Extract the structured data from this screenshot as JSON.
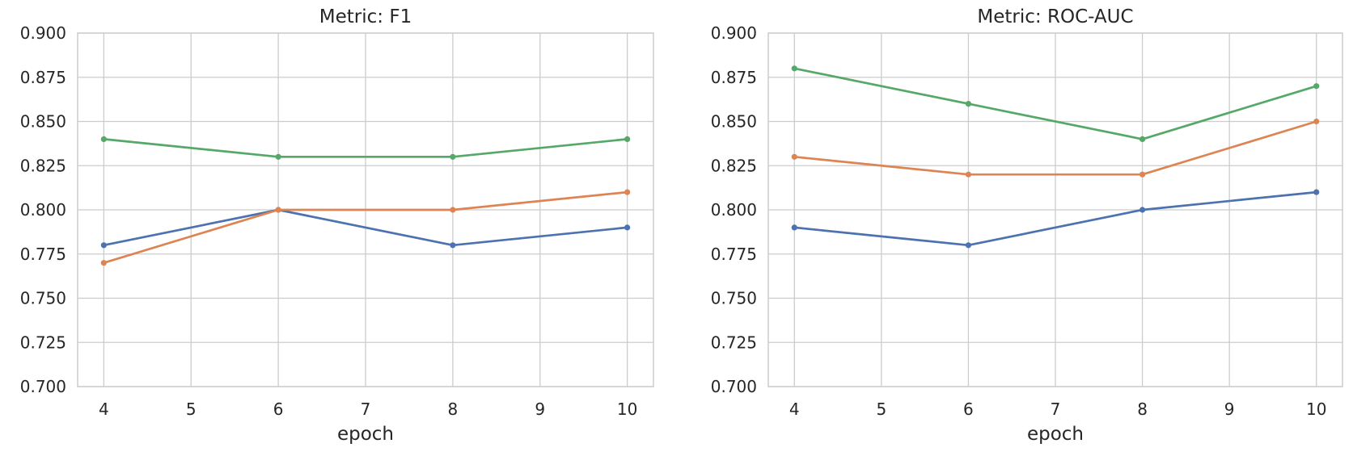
{
  "figure": {
    "background_color": "#ffffff",
    "text_color": "#262626",
    "grid_color": "#cccccc"
  },
  "chart_data": [
    {
      "type": "line",
      "title": "Metric: F1",
      "xlabel": "epoch",
      "ylabel": "",
      "x": [
        4,
        6,
        8,
        10
      ],
      "xticks": [
        4,
        5,
        6,
        7,
        8,
        9,
        10
      ],
      "yticks": [
        "0.700",
        "0.725",
        "0.750",
        "0.775",
        "0.800",
        "0.825",
        "0.850",
        "0.875",
        "0.900"
      ],
      "xlim": [
        3.7,
        10.3
      ],
      "ylim": [
        0.7,
        0.9
      ],
      "grid": true,
      "legend": "none",
      "marker": "circle",
      "series": [
        {
          "name": "blue-series",
          "color": "#4C72B0",
          "values": [
            0.78,
            0.8,
            0.78,
            0.79
          ]
        },
        {
          "name": "orange-series",
          "color": "#DD8452",
          "values": [
            0.77,
            0.8,
            0.8,
            0.81
          ]
        },
        {
          "name": "green-series",
          "color": "#55A868",
          "values": [
            0.84,
            0.83,
            0.83,
            0.84
          ]
        }
      ]
    },
    {
      "type": "line",
      "title": "Metric: ROC-AUC",
      "xlabel": "epoch",
      "ylabel": "",
      "x": [
        4,
        6,
        8,
        10
      ],
      "xticks": [
        4,
        5,
        6,
        7,
        8,
        9,
        10
      ],
      "yticks": [
        "0.700",
        "0.725",
        "0.750",
        "0.775",
        "0.800",
        "0.825",
        "0.850",
        "0.875",
        "0.900"
      ],
      "xlim": [
        3.7,
        10.3
      ],
      "ylim": [
        0.7,
        0.9
      ],
      "grid": true,
      "legend": "none",
      "marker": "circle",
      "series": [
        {
          "name": "blue-series",
          "color": "#4C72B0",
          "values": [
            0.79,
            0.78,
            0.8,
            0.81
          ]
        },
        {
          "name": "orange-series",
          "color": "#DD8452",
          "values": [
            0.83,
            0.82,
            0.82,
            0.85
          ]
        },
        {
          "name": "green-series",
          "color": "#55A868",
          "values": [
            0.88,
            0.86,
            0.84,
            0.87
          ]
        }
      ]
    }
  ]
}
